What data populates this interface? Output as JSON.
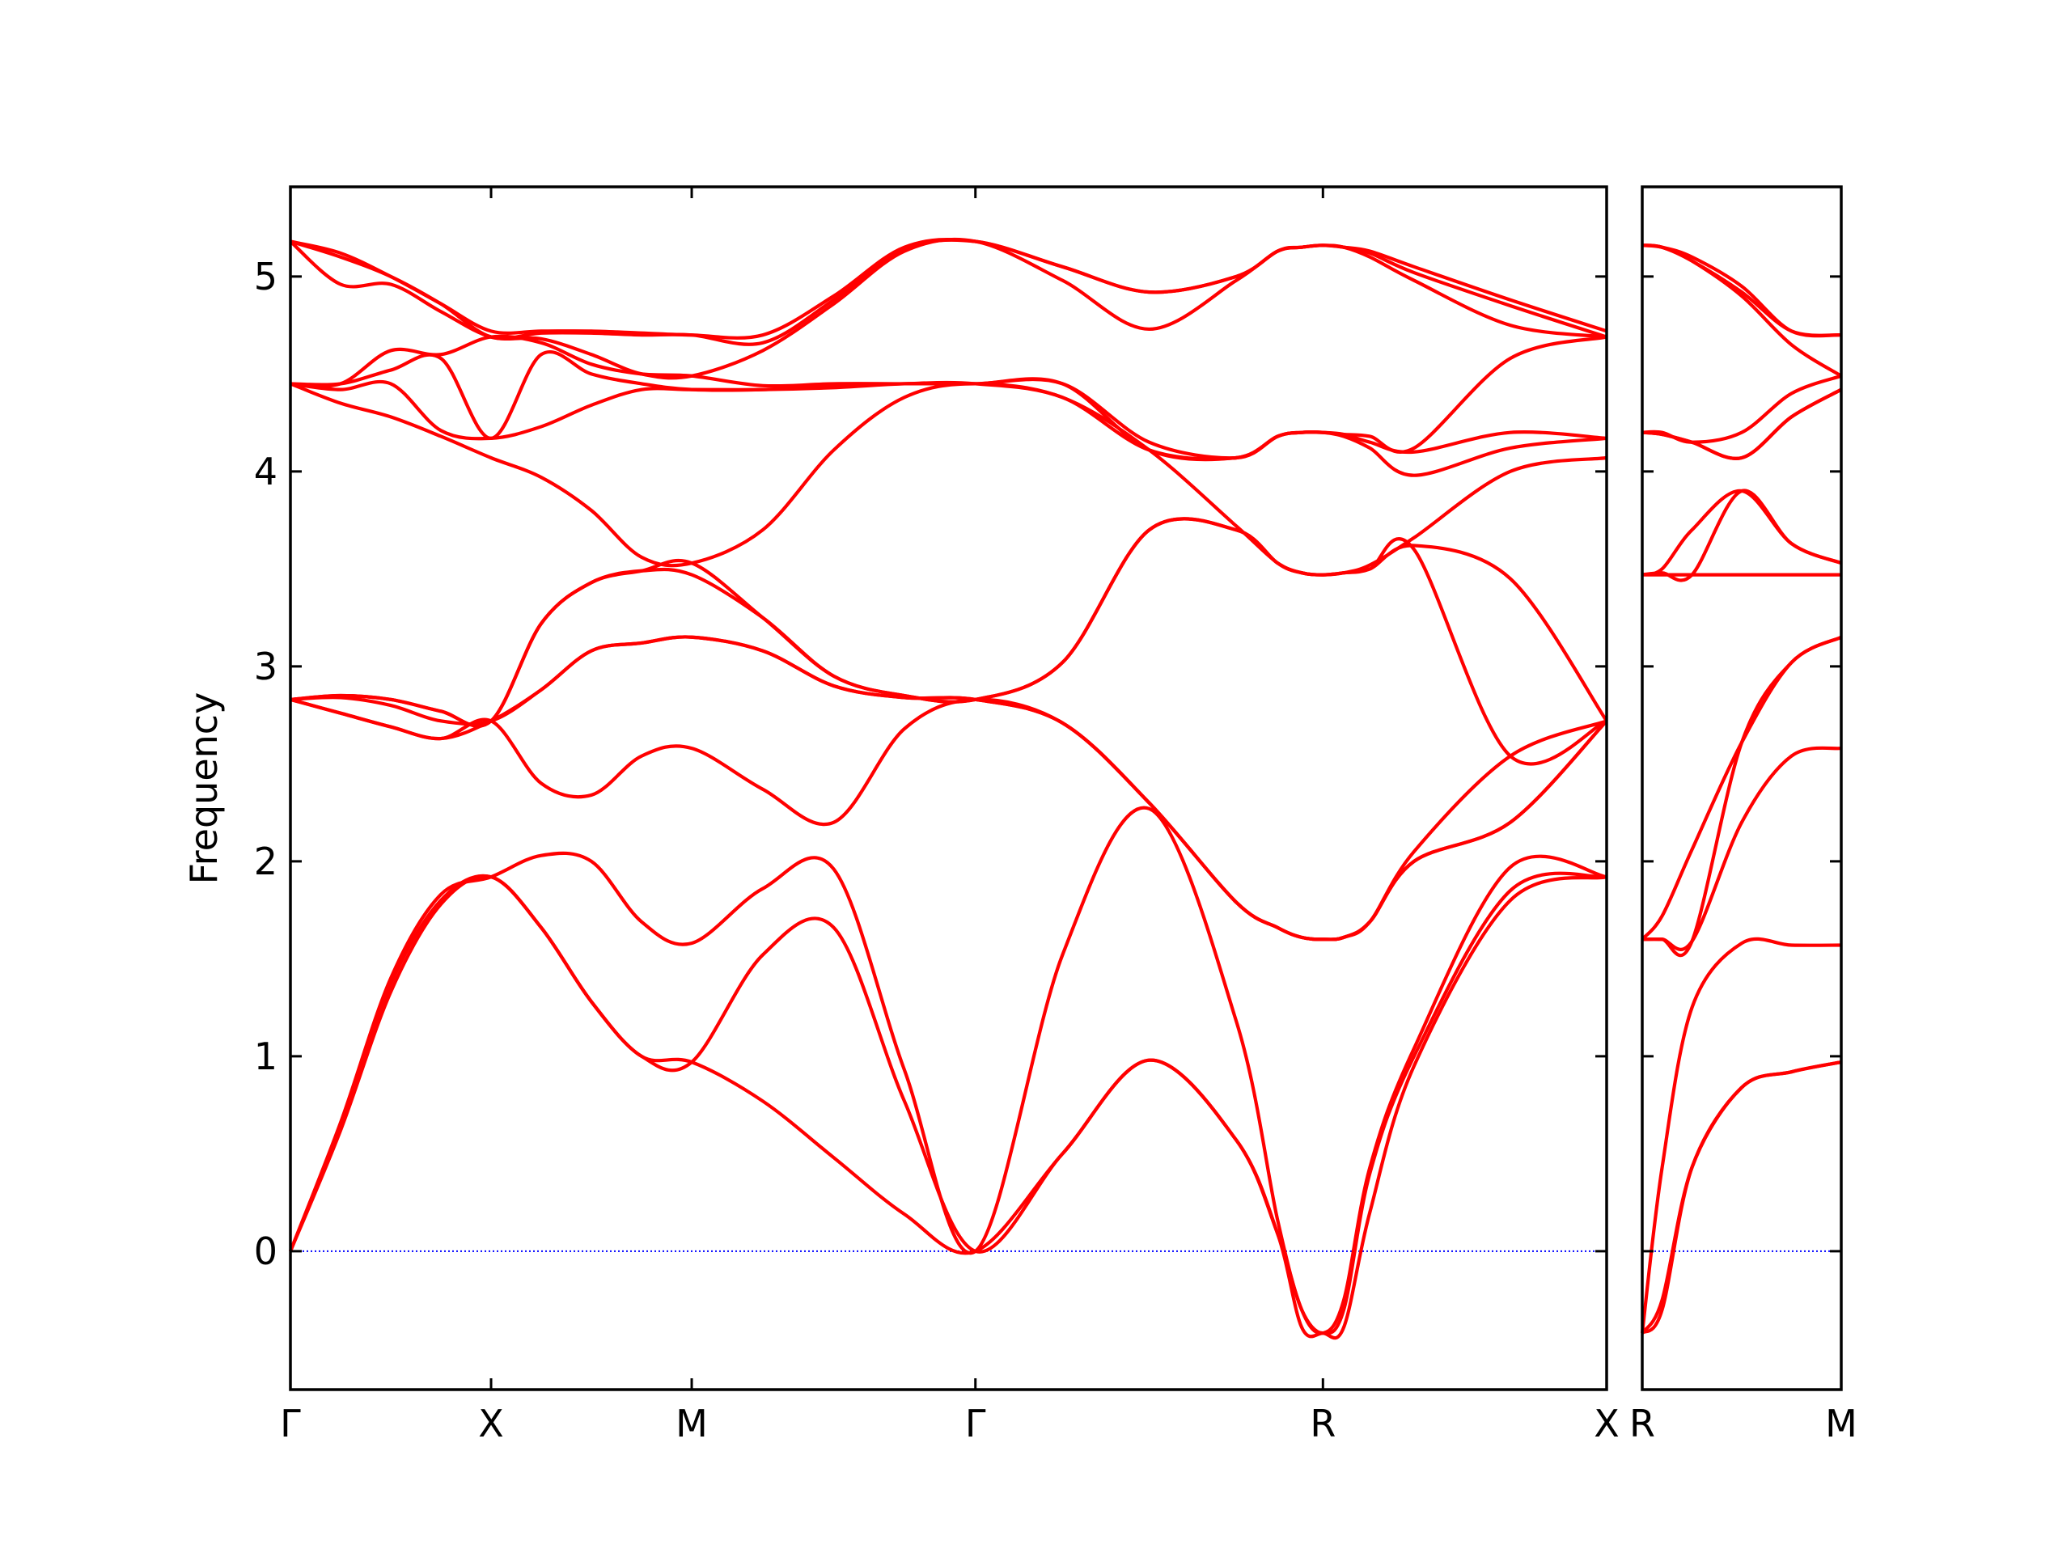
{
  "chart_data": [
    {
      "type": "line",
      "ylabel": "Frequency",
      "color": "#ff0000",
      "hline": {
        "value": 0,
        "color": "#0000ff"
      },
      "ytick_labels": true,
      "x": [
        0,
        0.125,
        0.25,
        0.375,
        0.5,
        0.625,
        0.75,
        0.875,
        1.0,
        1.177,
        1.354,
        1.53,
        1.707,
        1.924,
        2.14,
        2.357,
        2.46,
        2.52,
        2.573,
        2.625,
        2.69,
        2.8,
        3.04,
        3.28
      ],
      "xlim": [
        0,
        3.28
      ],
      "xticks": [
        {
          "value": 0,
          "label": "Γ"
        },
        {
          "value": 0.5,
          "label": "X"
        },
        {
          "value": 1.0,
          "label": "M"
        },
        {
          "value": 1.707,
          "label": "Γ"
        },
        {
          "value": 2.573,
          "label": "R"
        },
        {
          "value": 3.28,
          "label": "X"
        }
      ],
      "ylim": [
        -0.71,
        5.46
      ],
      "yticks": [
        0,
        1,
        2,
        3,
        4,
        5
      ],
      "series": [
        {
          "values": [
            0,
            0.62,
            1.33,
            1.78,
            1.92,
            1.66,
            1.28,
            1.0,
            0.97,
            0.77,
            0.48,
            0.19,
            0,
            0.5,
            0.98,
            0.57,
            0.09,
            -0.39,
            -0.42,
            -0.39,
            0.2,
            0.95,
            1.8,
            1.92
          ]
        },
        {
          "values": [
            0,
            0.64,
            1.37,
            1.8,
            1.92,
            1.66,
            1.28,
            1.0,
            0.97,
            1.52,
            1.66,
            0.77,
            0,
            0.5,
            0.98,
            0.57,
            0.09,
            -0.3,
            -0.42,
            -0.3,
            0.4,
            1.0,
            1.85,
            1.92
          ]
        },
        {
          "values": [
            0,
            0.66,
            1.4,
            1.83,
            1.92,
            2.03,
            2.0,
            1.69,
            1.58,
            1.86,
            1.96,
            0.93,
            0,
            1.52,
            2.27,
            1.18,
            0.16,
            -0.3,
            -0.42,
            -0.25,
            0.43,
            1.04,
            1.97,
            1.92
          ]
        },
        {
          "values": [
            2.83,
            2.76,
            2.69,
            2.63,
            2.72,
            2.4,
            2.34,
            2.54,
            2.58,
            2.37,
            2.2,
            2.68,
            2.83,
            2.71,
            2.3,
            1.79,
            1.66,
            1.61,
            1.6,
            1.61,
            1.69,
            2.0,
            2.2,
            2.72
          ]
        },
        {
          "values": [
            2.83,
            2.76,
            2.69,
            2.63,
            2.72,
            2.88,
            3.08,
            3.12,
            3.15,
            3.08,
            2.9,
            2.84,
            2.83,
            2.71,
            2.3,
            1.79,
            1.66,
            1.61,
            1.6,
            1.61,
            1.69,
            2.0,
            2.2,
            2.72
          ]
        },
        {
          "values": [
            2.83,
            2.84,
            2.8,
            2.72,
            2.72,
            2.88,
            3.08,
            3.12,
            3.15,
            3.08,
            2.9,
            2.84,
            2.83,
            2.71,
            2.3,
            1.79,
            1.66,
            1.61,
            1.6,
            1.61,
            1.69,
            2.05,
            2.54,
            2.72
          ]
        },
        {
          "values": [
            2.83,
            2.85,
            2.83,
            2.77,
            2.72,
            3.22,
            3.43,
            3.49,
            3.47,
            3.25,
            2.95,
            2.85,
            2.83,
            3.02,
            3.7,
            3.7,
            3.53,
            3.48,
            3.47,
            3.48,
            3.5,
            3.6,
            2.54,
            2.72
          ]
        },
        {
          "values": [
            2.83,
            2.85,
            2.83,
            2.77,
            2.72,
            3.22,
            3.43,
            3.49,
            3.53,
            3.25,
            2.95,
            2.85,
            2.83,
            3.02,
            3.7,
            3.7,
            3.53,
            3.48,
            3.47,
            3.48,
            3.5,
            3.62,
            3.45,
            2.72
          ]
        },
        {
          "values": [
            4.45,
            4.35,
            4.28,
            4.18,
            4.07,
            3.97,
            3.8,
            3.56,
            3.53,
            3.7,
            4.11,
            4.38,
            4.45,
            4.38,
            4.11,
            3.72,
            3.53,
            3.48,
            3.47,
            3.48,
            3.52,
            3.66,
            4.0,
            4.07
          ]
        },
        {
          "values": [
            4.45,
            4.42,
            4.45,
            4.21,
            4.17,
            4.23,
            4.34,
            4.42,
            4.42,
            4.42,
            4.43,
            4.45,
            4.45,
            4.38,
            4.11,
            4.07,
            4.18,
            4.2,
            4.2,
            4.18,
            4.12,
            3.98,
            4.12,
            4.17
          ]
        },
        {
          "values": [
            4.45,
            4.45,
            4.52,
            4.58,
            4.17,
            4.6,
            4.5,
            4.45,
            4.42,
            4.42,
            4.44,
            4.45,
            4.45,
            4.45,
            4.11,
            4.07,
            4.18,
            4.2,
            4.2,
            4.19,
            4.15,
            4.1,
            4.2,
            4.17
          ]
        },
        {
          "values": [
            4.45,
            4.45,
            4.62,
            4.6,
            4.69,
            4.66,
            4.55,
            4.5,
            4.49,
            4.44,
            4.45,
            4.45,
            4.45,
            4.45,
            4.15,
            4.07,
            4.18,
            4.2,
            4.2,
            4.19,
            4.18,
            4.12,
            4.58,
            4.69
          ]
        },
        {
          "values": [
            5.18,
            4.96,
            4.96,
            4.82,
            4.69,
            4.68,
            4.6,
            4.5,
            4.49,
            4.62,
            4.86,
            5.13,
            5.18,
            4.98,
            4.73,
            4.98,
            5.13,
            5.15,
            5.16,
            5.15,
            5.1,
            4.98,
            4.75,
            4.69
          ]
        },
        {
          "values": [
            5.18,
            5.1,
            5.0,
            4.86,
            4.69,
            4.71,
            4.71,
            4.7,
            4.7,
            4.66,
            4.88,
            5.14,
            5.18,
            5.05,
            4.92,
            5.0,
            5.13,
            5.15,
            5.16,
            5.15,
            5.12,
            5.02,
            4.85,
            4.69
          ]
        },
        {
          "values": [
            5.18,
            5.12,
            5.0,
            4.86,
            4.72,
            4.72,
            4.72,
            4.71,
            4.7,
            4.7,
            4.9,
            5.15,
            5.18,
            5.05,
            4.92,
            5.0,
            5.13,
            5.15,
            5.16,
            5.15,
            5.13,
            5.05,
            4.88,
            4.72
          ]
        }
      ]
    },
    {
      "type": "line",
      "color": "#ff0000",
      "hline": {
        "value": 0,
        "color": "#0000ff"
      },
      "ytick_labels": false,
      "x": [
        0,
        0.05,
        0.125,
        0.25,
        0.375,
        0.5
      ],
      "xlim": [
        0,
        0.5
      ],
      "xticks": [
        {
          "value": 0,
          "label": "R"
        },
        {
          "value": 0.5,
          "label": "M"
        }
      ],
      "ylim": [
        -0.71,
        5.46
      ],
      "yticks": [
        0,
        1,
        2,
        3,
        4,
        5
      ],
      "series": [
        {
          "values": [
            -0.42,
            -0.3,
            0.43,
            0.84,
            0.92,
            0.97
          ]
        },
        {
          "values": [
            -0.42,
            -0.25,
            0.43,
            0.84,
            0.92,
            0.97
          ]
        },
        {
          "values": [
            -0.42,
            0.43,
            1.25,
            1.58,
            1.57,
            1.57
          ]
        },
        {
          "values": [
            1.6,
            1.6,
            1.59,
            2.2,
            2.54,
            2.58
          ]
        },
        {
          "values": [
            1.6,
            1.6,
            1.59,
            2.61,
            3.02,
            3.15
          ]
        },
        {
          "values": [
            1.6,
            1.72,
            2.06,
            2.61,
            3.02,
            3.15
          ]
        },
        {
          "values": [
            3.47,
            3.47,
            3.47,
            3.47,
            3.47,
            3.47
          ]
        },
        {
          "values": [
            3.47,
            3.48,
            3.47,
            3.9,
            3.63,
            3.53
          ]
        },
        {
          "values": [
            3.47,
            3.5,
            3.7,
            3.9,
            3.63,
            3.53
          ]
        },
        {
          "values": [
            4.2,
            4.19,
            4.15,
            4.07,
            4.28,
            4.42
          ]
        },
        {
          "values": [
            4.2,
            4.19,
            4.15,
            4.07,
            4.28,
            4.42
          ]
        },
        {
          "values": [
            4.2,
            4.2,
            4.15,
            4.2,
            4.4,
            4.49
          ]
        },
        {
          "values": [
            5.16,
            5.15,
            5.08,
            4.9,
            4.65,
            4.49
          ]
        },
        {
          "values": [
            5.16,
            5.15,
            5.08,
            4.92,
            4.72,
            4.7
          ]
        },
        {
          "values": [
            5.16,
            5.15,
            5.1,
            4.95,
            4.72,
            4.7
          ]
        }
      ]
    }
  ]
}
